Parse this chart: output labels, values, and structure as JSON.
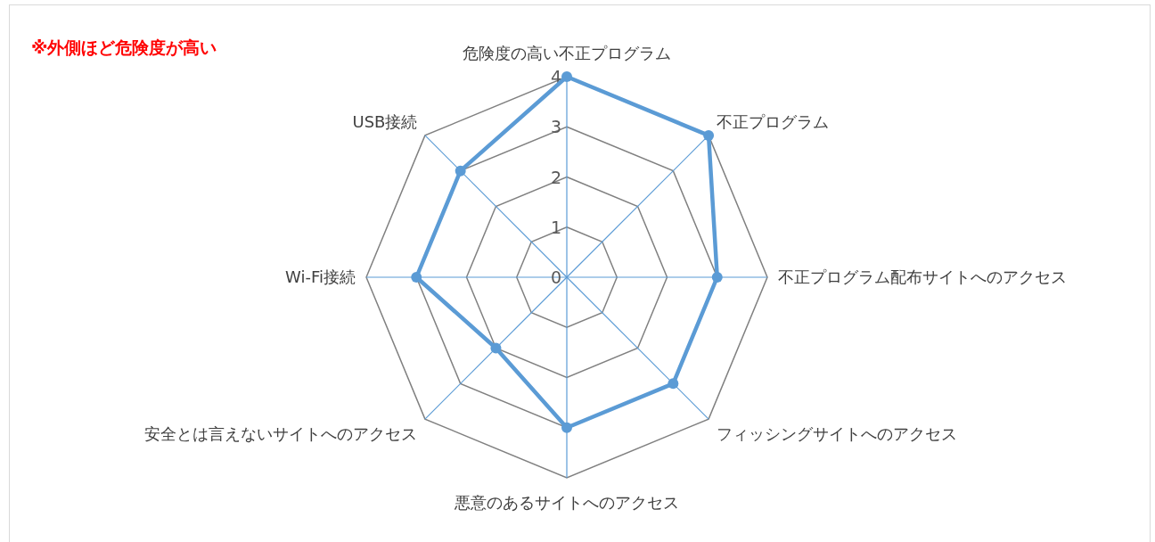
{
  "chart_data": {
    "type": "radar",
    "title": "※外側ほど危険度が高い",
    "categories": [
      "危険度の高い不正プログラム",
      "不正プログラム",
      "不正プログラム配布サイトへのアクセス",
      "フィッシングサイトへのアクセス",
      "悪意のあるサイトへのアクセス",
      "安全とは言えないサイトへのアクセス",
      "Wi-Fi接続",
      "USB接続"
    ],
    "series": [
      {
        "color": "#5b9bd5",
        "values": [
          4,
          4,
          3,
          3,
          3,
          2,
          3,
          3
        ]
      }
    ],
    "ylim": [
      0,
      4
    ],
    "yticks": [
      0,
      1,
      2,
      3,
      4
    ],
    "grid": true,
    "marker": "circle"
  }
}
